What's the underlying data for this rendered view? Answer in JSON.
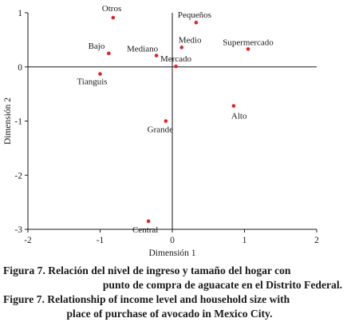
{
  "chart_data": {
    "type": "scatter",
    "xlabel": "Dimensión 1",
    "ylabel": "Dimensión 2",
    "xlim": [
      -2,
      2
    ],
    "ylim": [
      -3,
      1
    ],
    "xticks": [
      "-2",
      "-1",
      "0",
      "1",
      "2"
    ],
    "yticks": [
      "1",
      "0",
      "-1",
      "-2",
      "-3"
    ],
    "xtick_values": [
      -2,
      -1,
      0,
      1,
      2
    ],
    "ytick_values": [
      1,
      0,
      -1,
      -2,
      -3
    ],
    "grid": false,
    "reference_lines": "x=0 and y=0",
    "point_color": "#e0242b",
    "points": [
      {
        "label": "Otros",
        "x": -0.82,
        "y": 0.91,
        "anchor": "start"
      },
      {
        "label": "Pequeños",
        "x": 0.33,
        "y": 0.82,
        "anchor": "middle"
      },
      {
        "label": "Supermercado",
        "x": 1.05,
        "y": 0.33,
        "anchor": "middle"
      },
      {
        "label": "Bajo",
        "x": -0.88,
        "y": 0.25,
        "anchor": "end"
      },
      {
        "label": "Medio",
        "x": 0.13,
        "y": 0.36,
        "anchor": "start"
      },
      {
        "label": "Mediano",
        "x": -0.22,
        "y": 0.21,
        "anchor": "end"
      },
      {
        "label": "Mercado",
        "x": 0.05,
        "y": 0.01,
        "anchor": "middle"
      },
      {
        "label": "Tianguis",
        "x": -1.0,
        "y": -0.13,
        "anchor": "middle"
      },
      {
        "label": "Alto",
        "x": 0.85,
        "y": -0.72,
        "anchor": "start"
      },
      {
        "label": "Grande",
        "x": -0.09,
        "y": -1.0,
        "anchor": "middle"
      },
      {
        "label": "Central",
        "x": -0.33,
        "y": -2.85,
        "anchor": "middle"
      }
    ]
  },
  "caption": {
    "es_line1": "Figura 7. Relación del nivel de ingreso y tamaño del hogar con",
    "es_line2": "punto de compra de aguacate en el Distrito Federal.",
    "en_line1": "Figure 7. Relationship of income level and household size with",
    "en_line2": "place of purchase of avocado in Mexico City."
  }
}
